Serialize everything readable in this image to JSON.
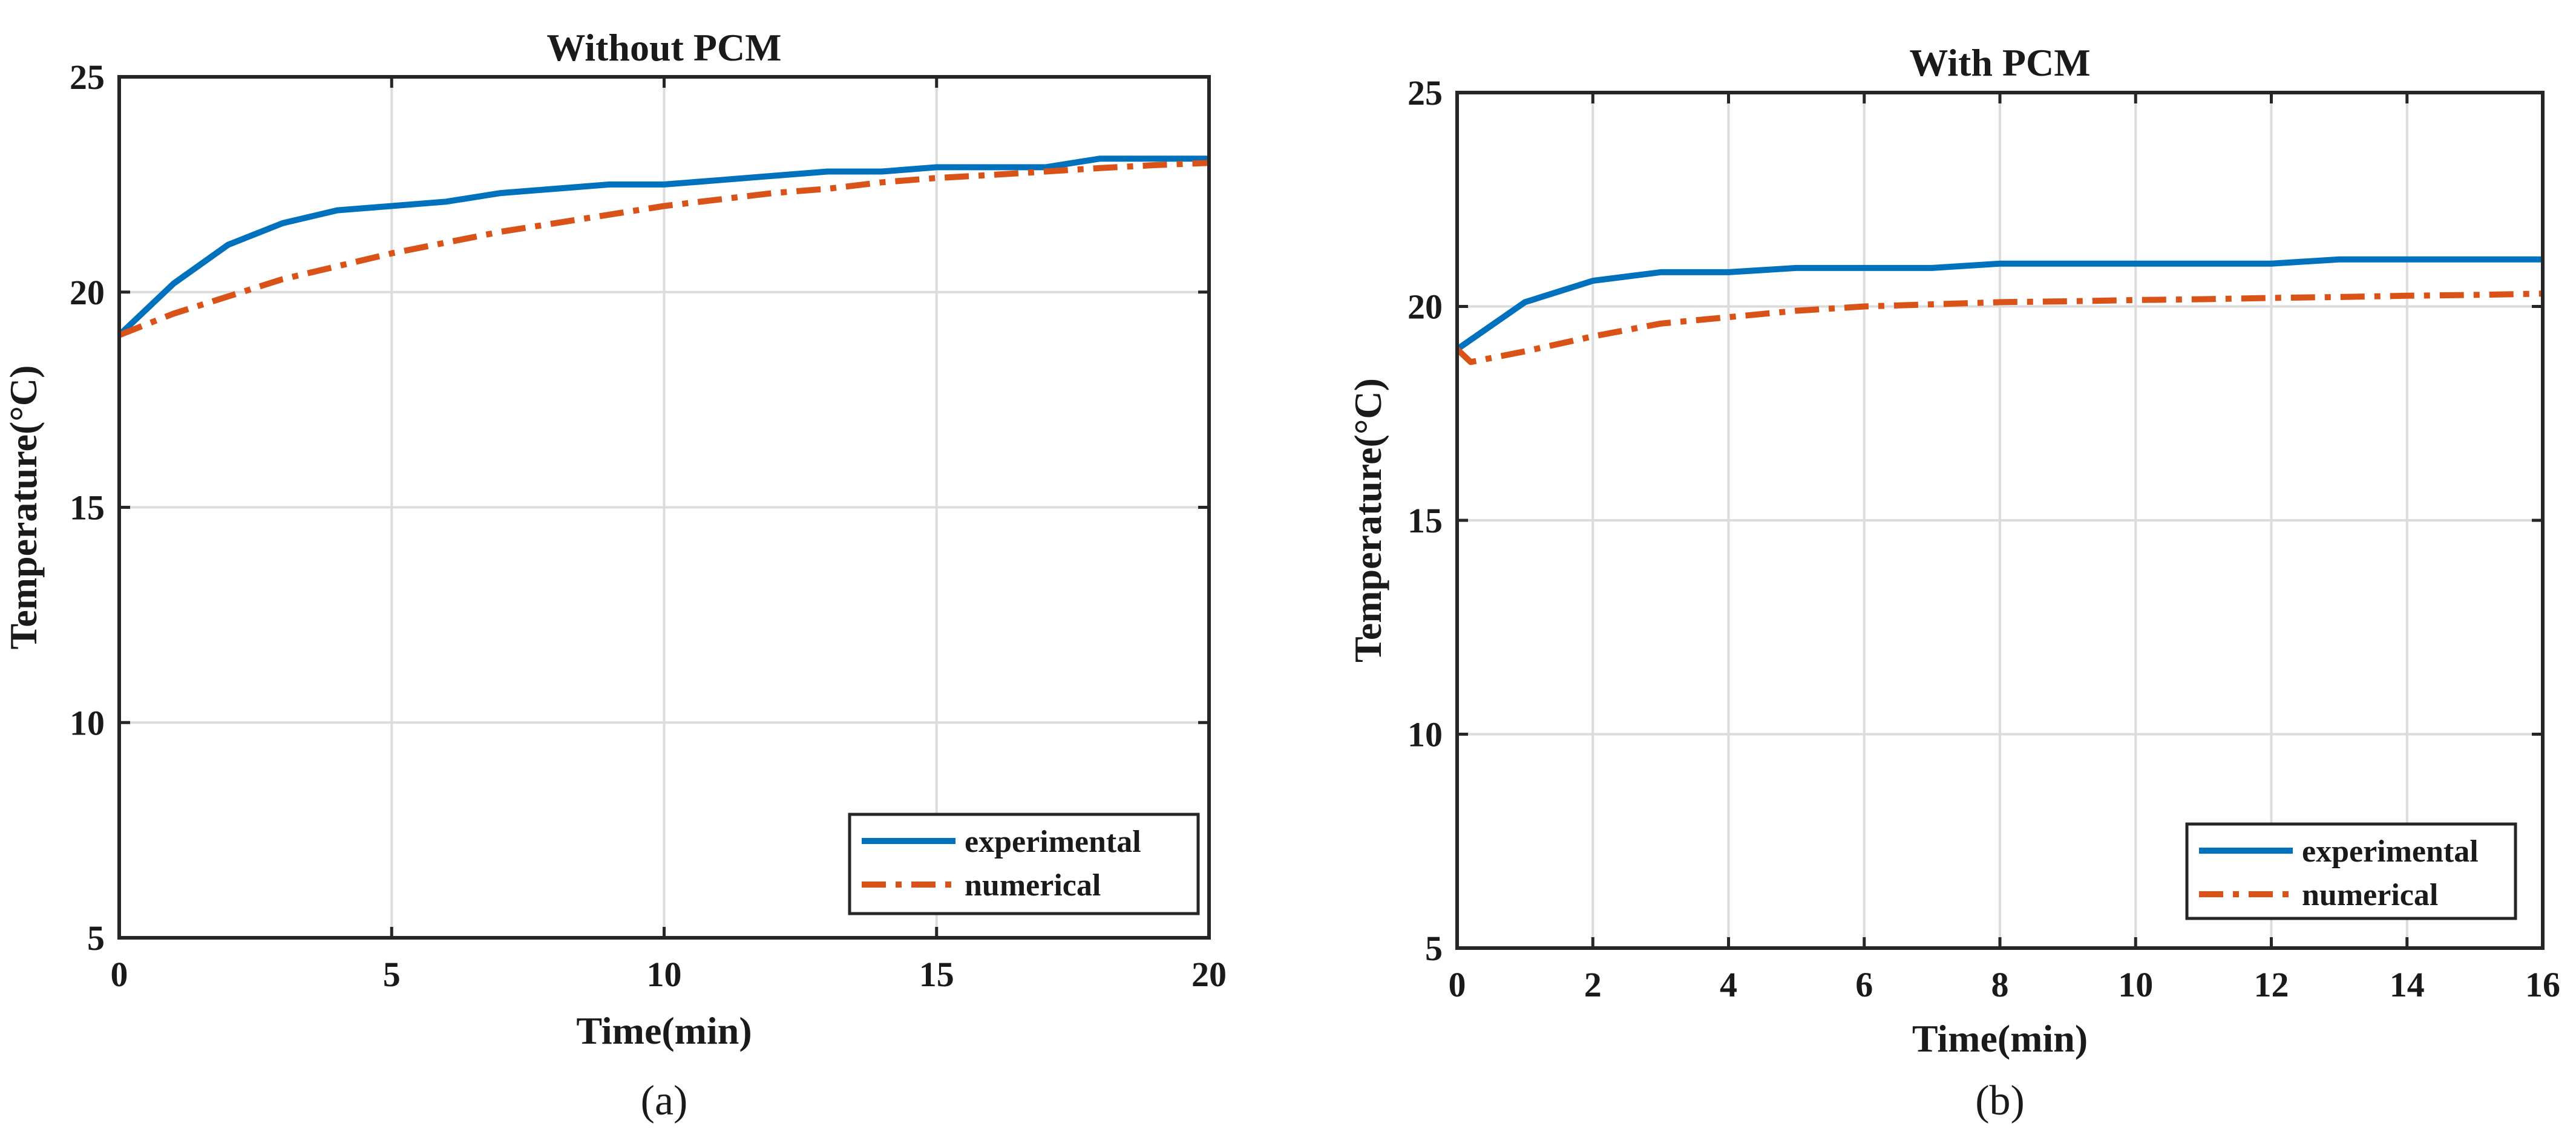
{
  "chart_data": [
    {
      "type": "line",
      "panel_label": "(a)",
      "title": "Without PCM",
      "xlabel": "Time(min)",
      "ylabel": "Temperature(°C)",
      "xlim": [
        0,
        20
      ],
      "ylim": [
        5,
        25
      ],
      "xticks": [
        0,
        5,
        10,
        15,
        20
      ],
      "yticks": [
        5,
        10,
        15,
        20,
        25
      ],
      "xtick_labels": [
        "0",
        "5",
        "10",
        "15",
        "20"
      ],
      "ytick_labels": [
        "5",
        "10",
        "15",
        "20",
        "25"
      ],
      "grid": true,
      "legend_position": "bottom-right",
      "series": [
        {
          "name": "experimental",
          "color": "#0072BD",
          "style": "solid",
          "x": [
            0,
            1,
            2,
            3,
            4,
            5,
            6,
            7,
            8,
            9,
            10,
            11,
            12,
            13,
            14,
            15,
            16,
            17,
            18,
            19,
            20
          ],
          "y": [
            19.0,
            20.2,
            21.1,
            21.6,
            21.9,
            22.0,
            22.1,
            22.3,
            22.4,
            22.5,
            22.5,
            22.6,
            22.7,
            22.8,
            22.8,
            22.9,
            22.9,
            22.9,
            23.1,
            23.1,
            23.1
          ]
        },
        {
          "name": "numerical",
          "color": "#D95319",
          "style": "dashdot",
          "x": [
            0,
            1,
            2,
            3,
            4,
            5,
            6,
            7,
            8,
            9,
            10,
            11,
            12,
            13,
            14,
            15,
            16,
            17,
            18,
            19,
            20
          ],
          "y": [
            19.0,
            19.5,
            19.9,
            20.3,
            20.6,
            20.9,
            21.15,
            21.4,
            21.6,
            21.8,
            22.0,
            22.15,
            22.3,
            22.4,
            22.55,
            22.65,
            22.72,
            22.8,
            22.88,
            22.95,
            23.0
          ]
        }
      ]
    },
    {
      "type": "line",
      "panel_label": "(b)",
      "title": "With PCM",
      "xlabel": "Time(min)",
      "ylabel": "Temperature(°C)",
      "xlim": [
        0,
        16
      ],
      "ylim": [
        5,
        25
      ],
      "xticks": [
        0,
        2,
        4,
        6,
        8,
        10,
        12,
        14,
        16
      ],
      "yticks": [
        5,
        10,
        15,
        20,
        25
      ],
      "xtick_labels": [
        "0",
        "2",
        "4",
        "6",
        "8",
        "10",
        "12",
        "14",
        "16"
      ],
      "ytick_labels": [
        "5",
        "10",
        "15",
        "20",
        "25"
      ],
      "grid": true,
      "legend_position": "bottom-right",
      "series": [
        {
          "name": "experimental",
          "color": "#0072BD",
          "style": "solid",
          "x": [
            0,
            1,
            2,
            3,
            4,
            5,
            6,
            7,
            8,
            9,
            10,
            11,
            12,
            13,
            14,
            15,
            16
          ],
          "y": [
            19.0,
            20.1,
            20.6,
            20.8,
            20.8,
            20.9,
            20.9,
            20.9,
            21.0,
            21.0,
            21.0,
            21.0,
            21.0,
            21.1,
            21.1,
            21.1,
            21.1
          ]
        },
        {
          "name": "numerical",
          "color": "#D95319",
          "style": "dashdot",
          "x": [
            0,
            0.2,
            1,
            2,
            3,
            4,
            5,
            6,
            7,
            8,
            9,
            10,
            11,
            12,
            13,
            14,
            15,
            16
          ],
          "y": [
            19.0,
            18.7,
            18.95,
            19.3,
            19.6,
            19.75,
            19.9,
            20.0,
            20.05,
            20.1,
            20.12,
            20.15,
            20.17,
            20.2,
            20.22,
            20.25,
            20.27,
            20.3
          ]
        }
      ]
    }
  ]
}
